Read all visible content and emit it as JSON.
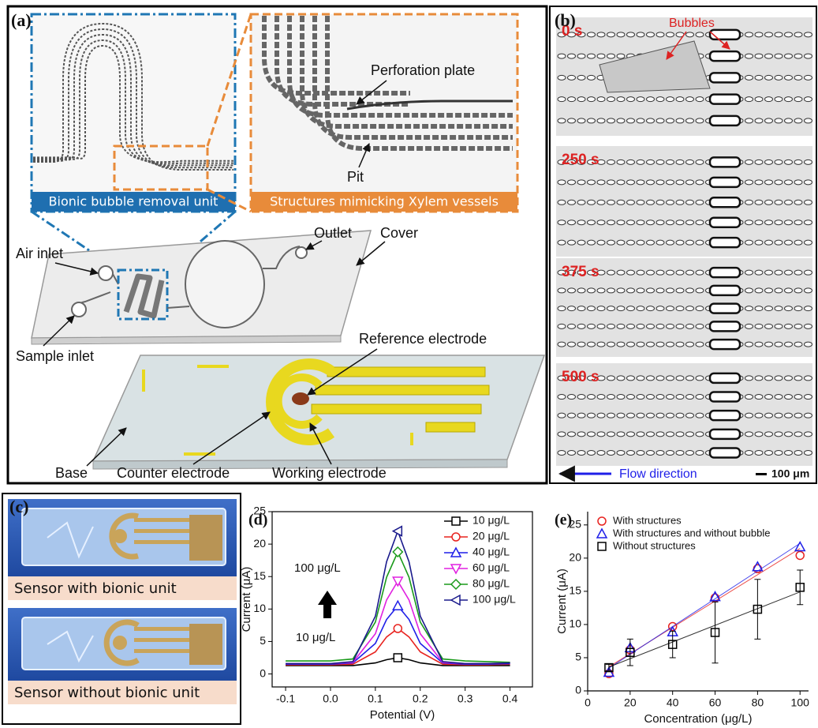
{
  "panels": {
    "a": {
      "label": "(a)",
      "inset_left": "Bionic bubble removal unit",
      "inset_right": "Structures mimicking Xylem vessels",
      "perforation": "Perforation plate",
      "pit": "Pit",
      "air_inlet": "Air inlet",
      "outlet": "Outlet",
      "cover": "Cover",
      "sample_inlet": "Sample inlet",
      "reference": "Reference electrode",
      "base": "Base",
      "counter": "Counter electrode",
      "working": "Working electrode"
    },
    "b": {
      "label": "(b)",
      "bubbles": "Bubbles",
      "times": [
        "0 s",
        "250 s",
        "375 s",
        "500 s"
      ],
      "flow": "Flow direction",
      "scale": "100 μm"
    },
    "c": {
      "label": "(c)",
      "captions": [
        "Sensor with bionic unit",
        "Sensor without bionic unit"
      ]
    }
  },
  "chart_data": [
    {
      "type": "line",
      "title": "(d)",
      "x_label": "Potential (V)",
      "y_label": "Current (μA)",
      "x": [
        -0.1,
        -0.05,
        0,
        0.05,
        0.1,
        0.125,
        0.15,
        0.175,
        0.2,
        0.25,
        0.3,
        0.35,
        0.4
      ],
      "series": [
        {
          "name": "10 μg/L",
          "color": "#000000",
          "marker": "square",
          "values": [
            1.3,
            1.3,
            1.3,
            1.3,
            1.7,
            2.2,
            2.5,
            2.2,
            1.7,
            1.3,
            1.3,
            1.3,
            1.3
          ]
        },
        {
          "name": "20 μg/L",
          "color": "#e8231f",
          "marker": "circle",
          "values": [
            1.4,
            1.4,
            1.4,
            1.5,
            3.4,
            5.7,
            7.0,
            5.7,
            3.4,
            1.5,
            1.4,
            1.4,
            1.5
          ]
        },
        {
          "name": "40 μg/L",
          "color": "#1f1fe8",
          "marker": "triangle-up",
          "values": [
            1.5,
            1.5,
            1.5,
            1.7,
            4.7,
            8.4,
            10.5,
            8.4,
            4.7,
            1.7,
            1.5,
            1.5,
            1.6
          ]
        },
        {
          "name": "60 μg/L",
          "color": "#e020e0",
          "marker": "triangle-down",
          "values": [
            1.6,
            1.6,
            1.6,
            1.8,
            6.2,
            11.4,
            14.3,
            11.4,
            6.2,
            1.8,
            1.6,
            1.6,
            1.7
          ]
        },
        {
          "name": "80 μg/L",
          "color": "#1a9a1a",
          "marker": "diamond",
          "values": [
            2.0,
            2.0,
            2.0,
            2.3,
            8.0,
            14.9,
            18.8,
            14.9,
            8.0,
            2.3,
            2.0,
            1.9,
            1.8
          ]
        },
        {
          "name": "100 μg/L",
          "color": "#1a1a8c",
          "marker": "triangle-left",
          "values": [
            1.6,
            1.6,
            1.6,
            1.9,
            8.9,
            17.3,
            22.0,
            17.3,
            8.9,
            1.9,
            1.6,
            1.6,
            1.7
          ]
        }
      ],
      "marker_x": 0.15,
      "annotations": [
        "100 μg/L",
        "10 μg/L"
      ],
      "xlim": [
        -0.13,
        0.45
      ],
      "ylim": [
        -2,
        25
      ],
      "xticks": [
        -0.1,
        {
          "value": 0,
          "label": "0.0"
        },
        0.1,
        0.2,
        0.3,
        0.4
      ],
      "yticks": [
        0,
        5,
        10,
        15,
        20,
        25
      ],
      "box": true,
      "legend": "upper right"
    },
    {
      "type": "scatter",
      "title": "(e)",
      "x_label": "Concentration (μg/L)",
      "y_label": "Current (μA)",
      "x": [
        10,
        20,
        40,
        60,
        80,
        100
      ],
      "series": [
        {
          "name": "With structures",
          "color": "#e8231f",
          "marker": "circle",
          "values": [
            2.6,
            6.2,
            9.7,
            14.0,
            18.4,
            20.4
          ],
          "fit": true
        },
        {
          "name": "With structures and without bubble",
          "color": "#1f1fe8",
          "marker": "triangle-up",
          "values": [
            2.8,
            6.5,
            8.9,
            14.2,
            18.7,
            21.7
          ],
          "fit": true
        },
        {
          "name": "Without  structures",
          "color": "#000000",
          "marker": "square",
          "values": [
            3.5,
            5.8,
            7.0,
            8.8,
            12.3,
            15.6
          ],
          "errors": [
            0.5,
            2.0,
            2.0,
            4.6,
            4.5,
            2.6
          ],
          "fit": true
        }
      ],
      "xlim": [
        0,
        104
      ],
      "ylim": [
        0,
        27
      ],
      "xticks": [
        0,
        20,
        40,
        60,
        80,
        100
      ],
      "yticks": [
        0,
        5,
        10,
        15,
        20,
        25
      ],
      "box": false,
      "legend": "upper left"
    }
  ]
}
